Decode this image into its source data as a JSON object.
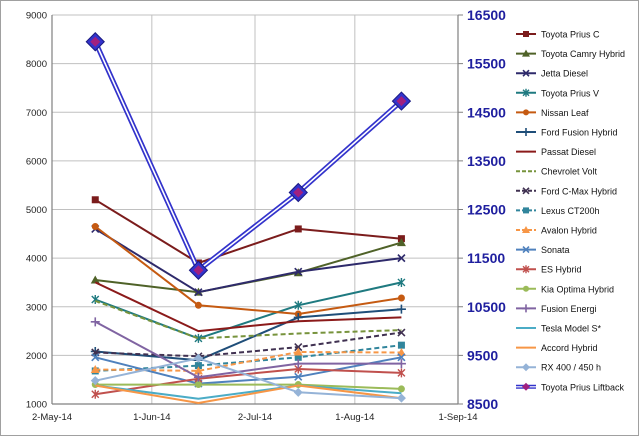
{
  "chart_data": {
    "type": "line",
    "x": [
      "2014-05-15",
      "2014-06-15",
      "2014-07-15",
      "2014-08-15"
    ],
    "xlim": [
      "2014-05-02",
      "2014-09-01"
    ],
    "xticks": [
      "2-May-14",
      "1-Jun-14",
      "2-Jul-14",
      "1-Aug-14",
      "1-Sep-14"
    ],
    "ylim": [
      1000,
      9000
    ],
    "yticks": [
      "1000",
      "2000",
      "3000",
      "4000",
      "5000",
      "6000",
      "7000",
      "8000",
      "9000"
    ],
    "y2lim": [
      8500,
      16500
    ],
    "y2ticks": [
      "8500",
      "9500",
      "10500",
      "11500",
      "12500",
      "13500",
      "14500",
      "15500",
      "16500"
    ],
    "grid": true,
    "legend_position": "right",
    "colors": {
      "secondary_axis_text": "#1f1f9f",
      "grid": "#c0c0c0",
      "axis": "#808080"
    },
    "series": [
      {
        "name": "Toyota Prius C",
        "values": [
          5200,
          3900,
          4600,
          4400
        ],
        "color": "#7b1c1c",
        "dash": false,
        "marker": "square",
        "axis": "left"
      },
      {
        "name": "Toyota Camry Hybrid",
        "values": [
          3550,
          3300,
          3700,
          4320
        ],
        "color": "#4f6228",
        "dash": false,
        "marker": "triangle",
        "axis": "left"
      },
      {
        "name": "Jetta Diesel",
        "values": [
          4600,
          3300,
          3720,
          4000
        ],
        "color": "#2e2a6b",
        "dash": false,
        "marker": "x",
        "axis": "left"
      },
      {
        "name": "Toyota Prius V",
        "values": [
          3150,
          2350,
          3030,
          3500
        ],
        "color": "#1f7a80",
        "dash": false,
        "marker": "star",
        "axis": "left"
      },
      {
        "name": "Nissan Leaf",
        "values": [
          4650,
          3030,
          2850,
          3180
        ],
        "color": "#c55a11",
        "dash": false,
        "marker": "circle",
        "axis": "left"
      },
      {
        "name": "Ford Fusion Hybrid",
        "values": [
          2080,
          1900,
          2780,
          2950
        ],
        "color": "#1f4e79",
        "dash": false,
        "marker": "plus",
        "axis": "left"
      },
      {
        "name": "Passat Diesel",
        "values": [
          3500,
          2500,
          2700,
          2780
        ],
        "color": "#8b1a1a",
        "dash": false,
        "marker": "none",
        "axis": "left"
      },
      {
        "name": "Chevrolet Volt",
        "values": [
          3120,
          2350,
          2450,
          2520
        ],
        "color": "#77933c",
        "dash": true,
        "marker": "none",
        "axis": "left"
      },
      {
        "name": "Ford C-Max Hybrid",
        "values": [
          2060,
          1980,
          2170,
          2470
        ],
        "color": "#403151",
        "dash": true,
        "marker": "x",
        "axis": "left"
      },
      {
        "name": "Lexus CT200h",
        "values": [
          1680,
          1790,
          1960,
          2210
        ],
        "color": "#31859c",
        "dash": true,
        "marker": "square",
        "axis": "left"
      },
      {
        "name": "Avalon Hybrid",
        "values": [
          1710,
          1680,
          2070,
          2060
        ],
        "color": "#f79646",
        "dash": true,
        "marker": "triangle",
        "axis": "left"
      },
      {
        "name": "Sonata",
        "values": [
          1960,
          1420,
          1560,
          1960
        ],
        "color": "#4f81bd",
        "dash": false,
        "marker": "x",
        "axis": "left"
      },
      {
        "name": "ES Hybrid",
        "values": [
          1200,
          1520,
          1720,
          1640
        ],
        "color": "#c0504d",
        "dash": false,
        "marker": "star",
        "axis": "left"
      },
      {
        "name": "Kia Optima Hybrid",
        "values": [
          1400,
          1400,
          1400,
          1310
        ],
        "color": "#9bbb59",
        "dash": false,
        "marker": "circle",
        "axis": "left"
      },
      {
        "name": "Fusion Energi",
        "values": [
          2690,
          1550,
          1830,
          1830
        ],
        "color": "#8064a2",
        "dash": false,
        "marker": "plus",
        "axis": "left"
      },
      {
        "name": "Tesla Model S*",
        "values": [
          1380,
          1110,
          1380,
          1220
        ],
        "color": "#4bacc6",
        "dash": false,
        "marker": "none",
        "axis": "left"
      },
      {
        "name": "Accord Hybrid",
        "values": [
          1380,
          1020,
          1380,
          1120
        ],
        "color": "#f79646",
        "dash": false,
        "marker": "none",
        "axis": "left"
      },
      {
        "name": "RX 400 / 450 h",
        "values": [
          1480,
          1940,
          1240,
          1120
        ],
        "color": "#95b3d7",
        "dash": false,
        "marker": "diamond",
        "axis": "left"
      },
      {
        "name": "Toyota Prius Liftback",
        "values": [
          15950,
          11250,
          12850,
          14730
        ],
        "color": "#3333cc",
        "dash": false,
        "marker": "diamond",
        "axis": "right",
        "double": true
      }
    ]
  }
}
